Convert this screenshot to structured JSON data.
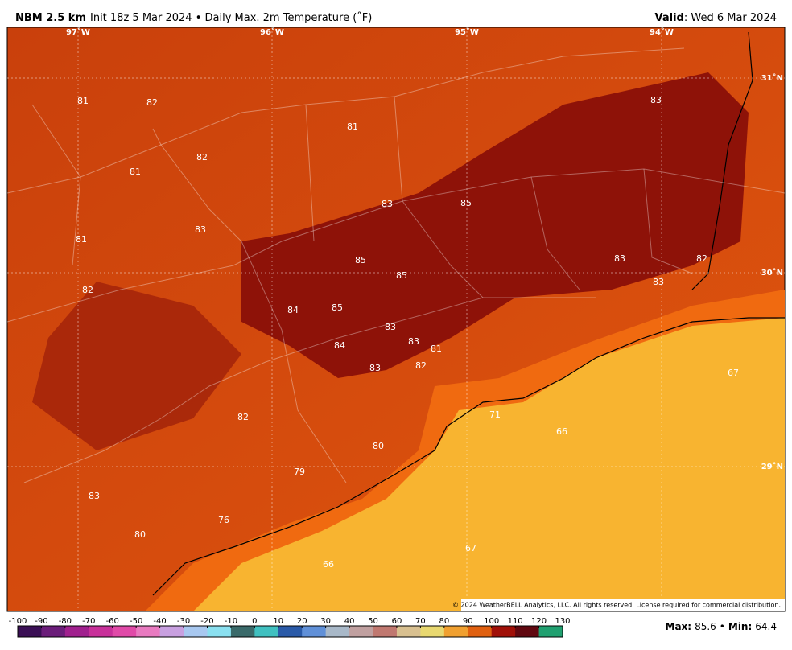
{
  "header": {
    "model": "NBM 2.5 km",
    "init": "Init 18z 5 Mar 2024 • Daily Max. 2m Temperature (˚F)",
    "valid_label": "Valid",
    "valid": ": Wed 6 Mar 2024"
  },
  "lon_labels": [
    "97˚W",
    "96˚W",
    "95˚W",
    "94˚W"
  ],
  "lat_labels": [
    "31˚N",
    "30˚N",
    "29˚N"
  ],
  "map_labels": [
    81,
    82,
    81,
    83,
    82,
    81,
    83,
    85,
    83,
    81,
    85,
    85,
    83,
    82,
    83,
    82,
    84,
    85,
    83,
    83,
    81,
    84,
    83,
    82,
    67,
    82,
    71,
    66,
    80,
    79,
    83,
    76,
    80,
    67,
    66
  ],
  "copyright": "© 2024 WeatherBELL Analytics, LLC. All rights reserved. License required for commercial distribution.",
  "colorbar_ticks": [
    -100,
    -90,
    -80,
    -70,
    -60,
    -50,
    -40,
    -30,
    -20,
    -10,
    0,
    10,
    20,
    30,
    40,
    50,
    60,
    70,
    80,
    90,
    100,
    110,
    120,
    130
  ],
  "footer": {
    "max_label": "Max:",
    "max": 85.6,
    "separator": "•",
    "min_label": "Min:",
    "min": 64.4
  }
}
